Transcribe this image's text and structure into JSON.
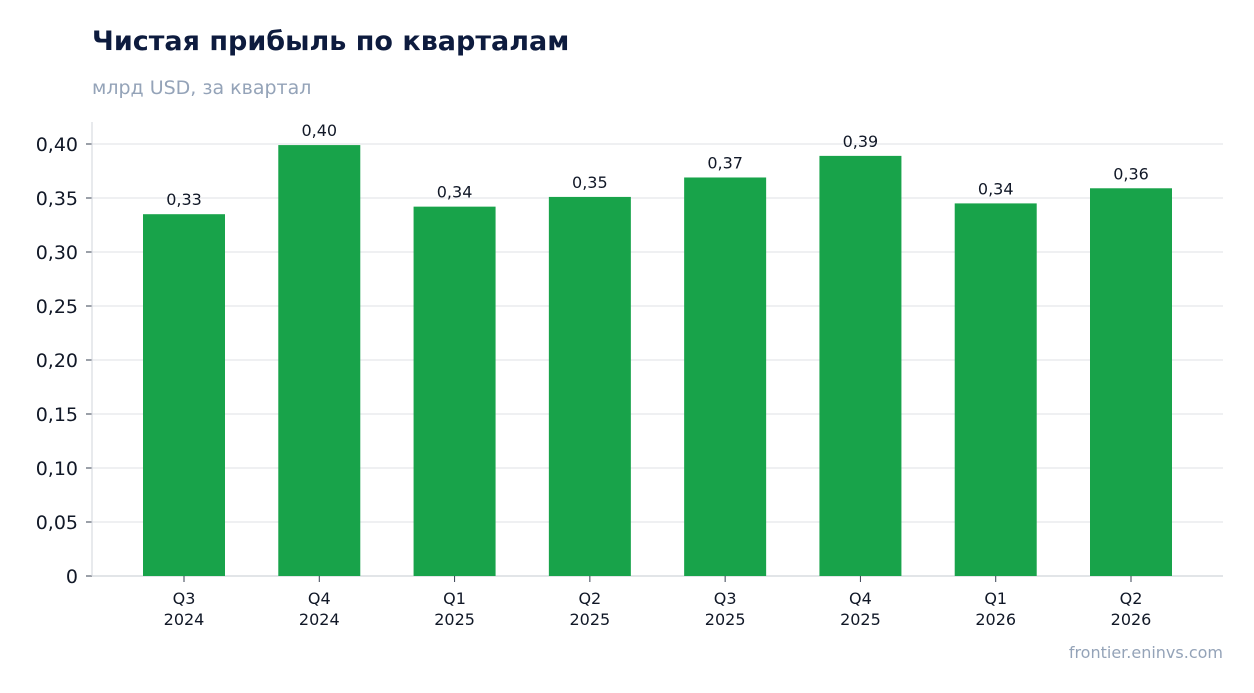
{
  "header": {
    "title": "Чистая прибыль по кварталам",
    "subtitle": "млрд USD, за квартал"
  },
  "footer": {
    "source": "frontier.eninvs.com"
  },
  "chart_data": {
    "type": "bar",
    "title": "Чистая прибыль по кварталам",
    "subtitle": "млрд USD, за квартал",
    "categories": [
      [
        "Q3",
        "2024"
      ],
      [
        "Q4",
        "2024"
      ],
      [
        "Q1",
        "2025"
      ],
      [
        "Q2",
        "2025"
      ],
      [
        "Q3",
        "2025"
      ],
      [
        "Q4",
        "2025"
      ],
      [
        "Q1",
        "2026"
      ],
      [
        "Q2",
        "2026"
      ]
    ],
    "values": [
      0.335,
      0.399,
      0.342,
      0.351,
      0.369,
      0.389,
      0.345,
      0.359
    ],
    "data_labels": [
      "0,33",
      "0,40",
      "0,34",
      "0,35",
      "0,37",
      "0,39",
      "0,34",
      "0,36"
    ],
    "ylim": [
      0,
      0.42
    ],
    "yticks": [
      0,
      0.05,
      0.1,
      0.15,
      0.2,
      0.25,
      0.3,
      0.35,
      0.4
    ],
    "ytick_labels": [
      "0",
      "0,05",
      "0,10",
      "0,15",
      "0,20",
      "0,25",
      "0,30",
      "0,35",
      "0,40"
    ],
    "bar_color": "#18a34a",
    "grid_color": "#e5e7eb",
    "axis_color": "#d1d5db",
    "grid": true,
    "legend": "none"
  }
}
